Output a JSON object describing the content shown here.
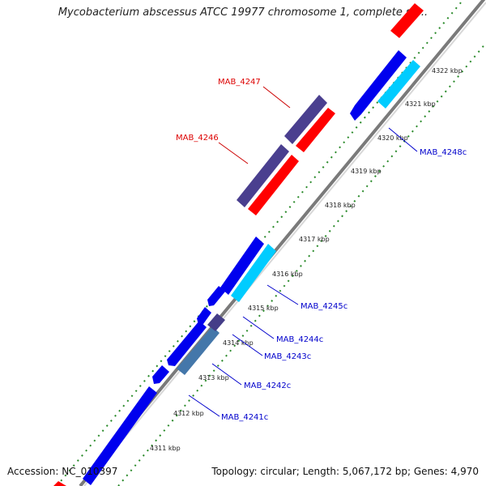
{
  "title": "Mycobacterium abscessus ATCC 19977 chromosome 1, complete se...",
  "accession": "Accession: NC_010397",
  "topology": "Topology: circular; Length: 5,067,172 bp; Genes: 4,970",
  "colors": {
    "backbone": "#8a8a8a",
    "forward_gene": "#ff0000",
    "forward_cds": "#4a3f8f",
    "reverse_gene": "#0000ee",
    "reverse_cds_light": "#00ccff",
    "reverse_cds_steel": "#4477aa",
    "reverse_cds_dark": "#443d88",
    "tick_minor": "#2a7a2a",
    "forward_label": "#dd0000",
    "reverse_label": "#0000cc"
  },
  "kbp_labels": [
    "4311 kbp",
    "4312 kbp",
    "4313 kbp",
    "4314 kbp",
    "4315 kbp",
    "4316 kbp",
    "4317 kbp",
    "4318 kbp",
    "4319 kbp",
    "4320 kbp",
    "4321 kbp",
    "4322 kbp"
  ],
  "gene_labels": {
    "forward": [
      "MAB_4247",
      "MAB_4246"
    ],
    "reverse": [
      "MAB_4248c",
      "MAB_4245c",
      "MAB_4244c",
      "MAB_4243c",
      "MAB_4242c",
      "MAB_4241c"
    ]
  }
}
